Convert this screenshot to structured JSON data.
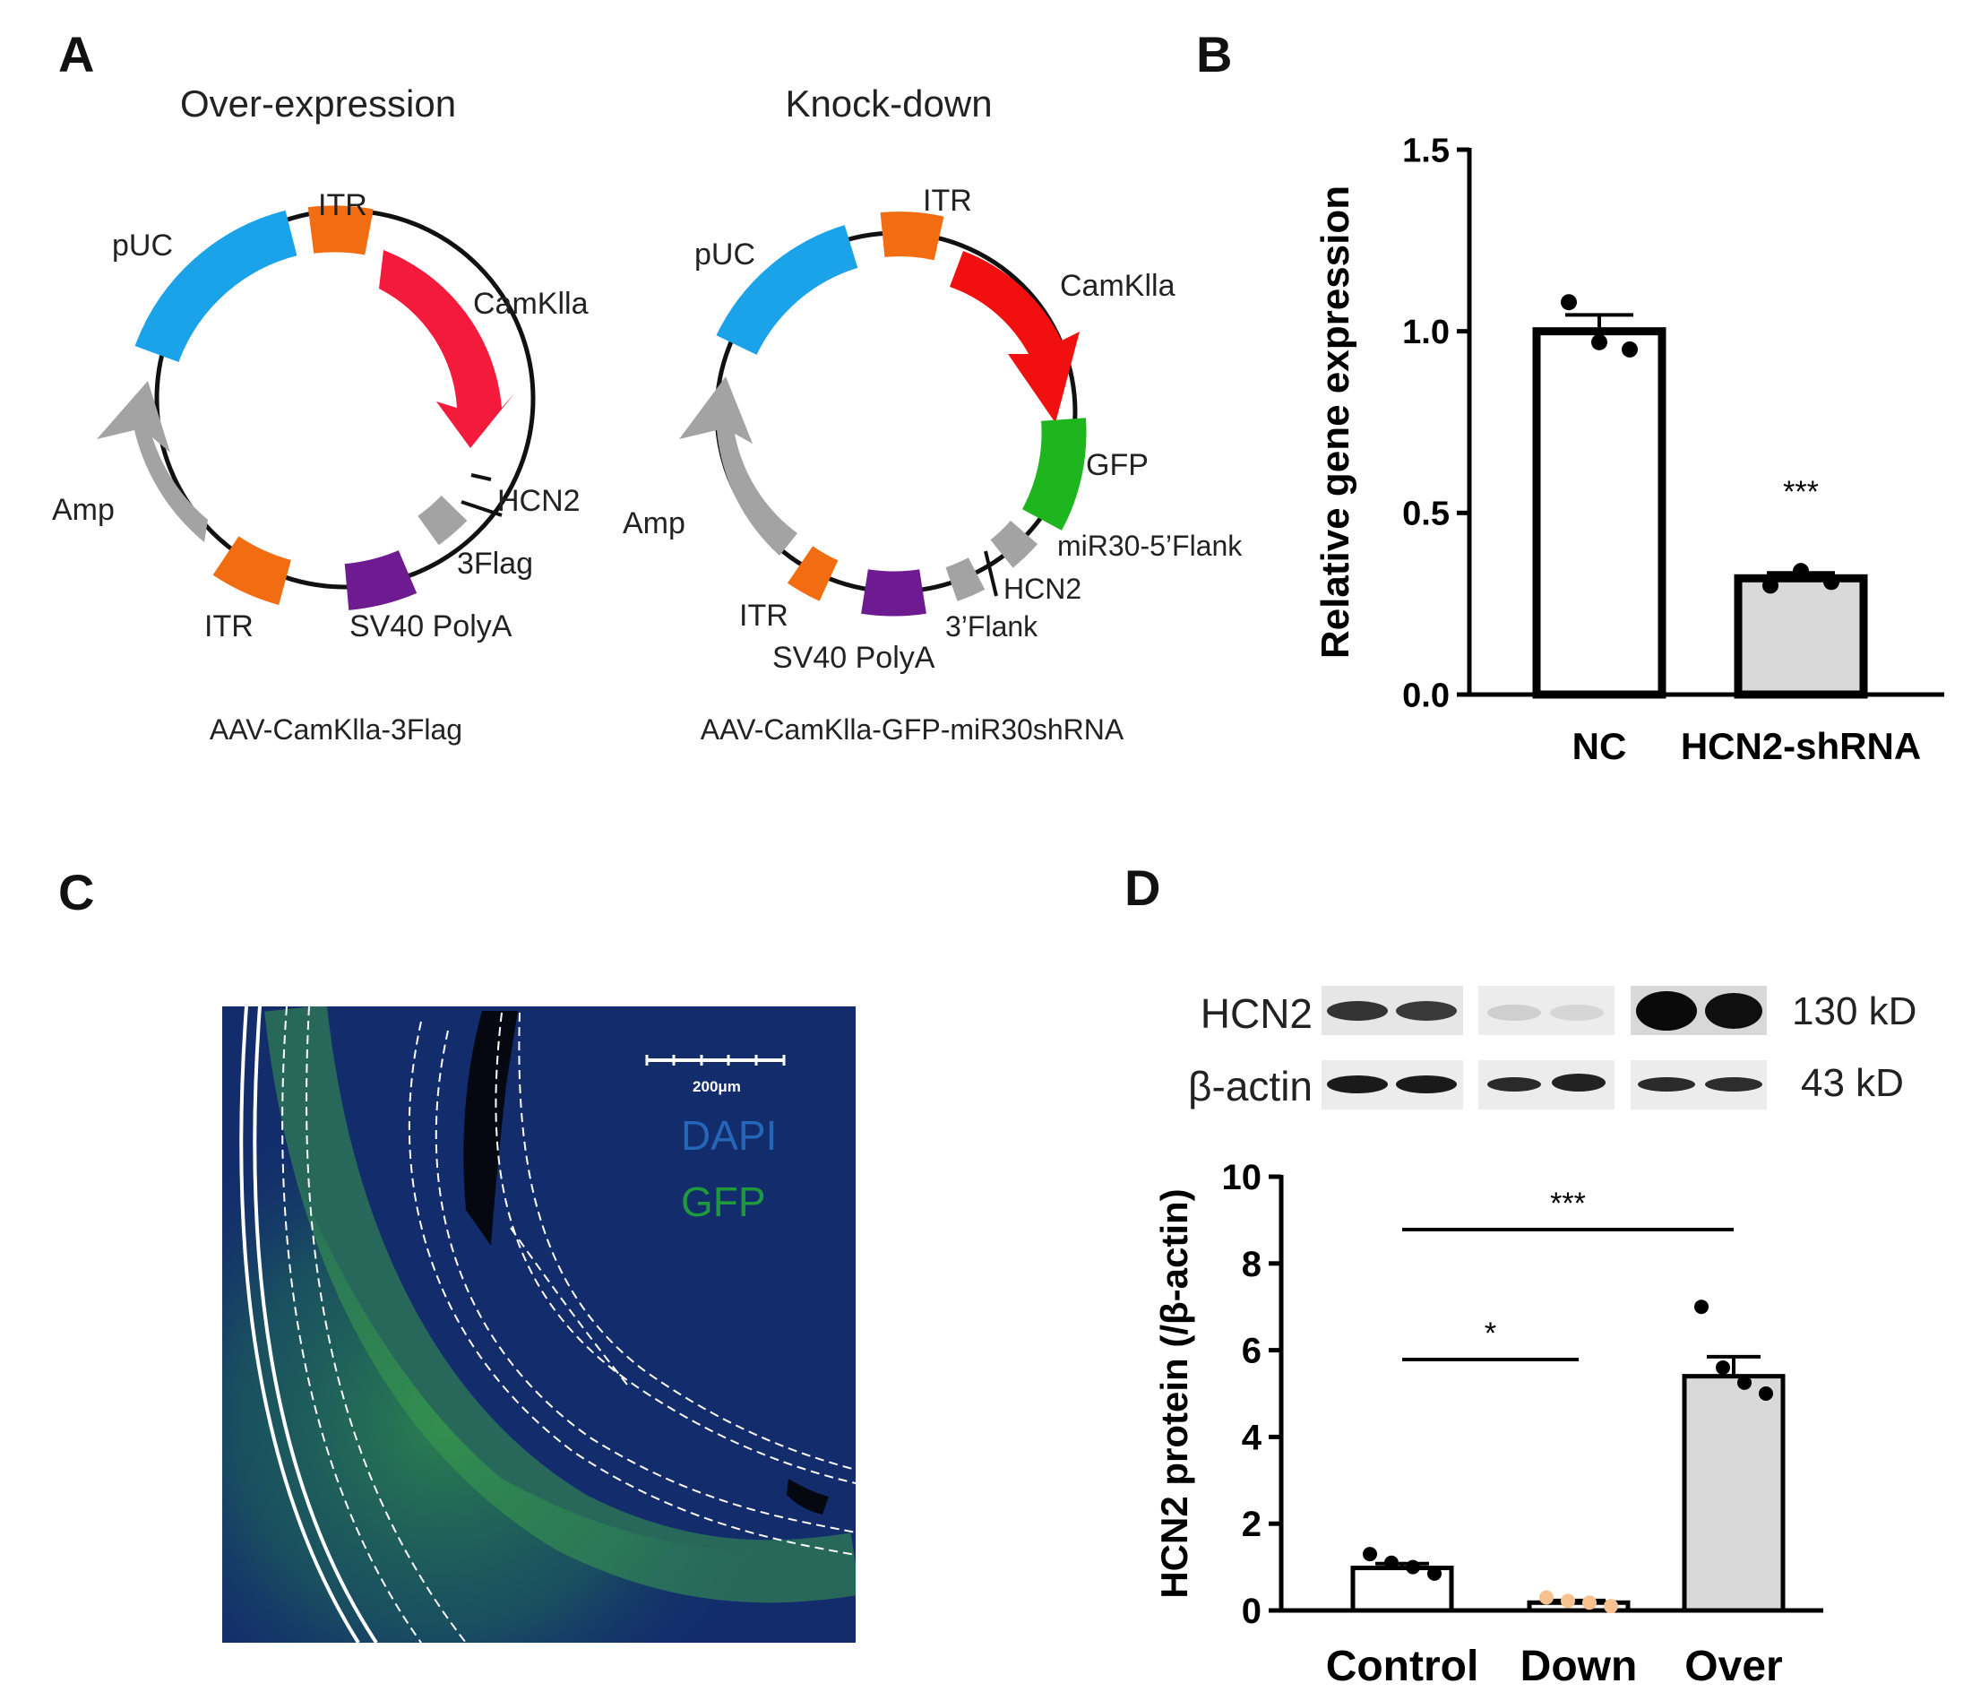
{
  "panels": {
    "A": {
      "letter": "A",
      "overexpression": {
        "title": "Over-expression",
        "name": "AAV-CamKlla-3Flag",
        "labels": {
          "ITR_top": "ITR",
          "pUC": "pUC",
          "CamKlla": "CamKlla",
          "HCN2": "HCN2",
          "Flag": "3Flag",
          "Amp": "Amp",
          "ITR_bottom": "ITR",
          "SV40": "SV40 PolyA"
        }
      },
      "knockdown": {
        "title": "Knock-down",
        "name": "AAV-CamKlla-GFP-miR30shRNA",
        "labels": {
          "ITR_top": "ITR",
          "pUC": "pUC",
          "CamKlla": "CamKlla",
          "GFP": "GFP",
          "miR30": "miR30-5’Flank",
          "HCN2": "HCN2",
          "Flank3": "3’Flank",
          "Amp": "Amp",
          "ITR_bottom": "ITR",
          "SV40": "SV40 PolyA"
        }
      },
      "colors": {
        "pUC": "#1aa3e8",
        "ITR": "#f26d12",
        "CamKlla": "#f31a3c",
        "CamKlla_kd": "#f20f0f",
        "GFP": "#1fb51f",
        "grey": "#a3a3a3",
        "SV40": "#6e1a91"
      }
    },
    "B": {
      "letter": "B"
    },
    "C": {
      "letter": "C",
      "scale_bar": "200μm",
      "legend": [
        {
          "label": "DAPI",
          "color": "#2566b8"
        },
        {
          "label": "GFP",
          "color": "#1e9a3c"
        }
      ]
    },
    "D": {
      "letter": "D",
      "blot": {
        "rows": [
          {
            "label": "HCN2",
            "size": "130 kD"
          },
          {
            "label": "β-actin",
            "size": "43 kD"
          }
        ]
      }
    }
  },
  "chart_data": [
    {
      "type": "bar",
      "panel": "B",
      "categories": [
        "NC",
        "HCN2-shRNA"
      ],
      "values": [
        1.0,
        0.32
      ],
      "errors": [
        0.045,
        0.015
      ],
      "points": [
        [
          1.08,
          0.97,
          0.95
        ],
        [
          0.3,
          0.34,
          0.31
        ]
      ],
      "fills": [
        "#ffffff",
        "#d9d9d9"
      ],
      "annotations": [
        {
          "category": "HCN2-shRNA",
          "text": "***"
        }
      ],
      "xlabel": "",
      "ylabel": "Relative gene expression",
      "ylim": [
        0,
        1.5
      ],
      "yticks": [
        "0.0",
        "0.5",
        "1.0",
        "1.5"
      ],
      "grid": false
    },
    {
      "type": "bar",
      "panel": "D",
      "categories": [
        "Control",
        "Down",
        "Over"
      ],
      "values": [
        0.98,
        0.18,
        5.4
      ],
      "errors": [
        0.1,
        0.05,
        0.45
      ],
      "points": [
        [
          1.3,
          1.1,
          1.0,
          0.85
        ],
        [
          0.3,
          0.22,
          0.18,
          0.1
        ],
        [
          7.0,
          5.6,
          5.25,
          5.0
        ]
      ],
      "fills": [
        "#ffffff",
        "#ffffff",
        "#d9d9d9"
      ],
      "point_colors": [
        "#000000",
        "#f7c28f",
        "#000000"
      ],
      "significance": [
        {
          "from": "Control",
          "to": "Over",
          "text": "***"
        },
        {
          "from": "Control",
          "to": "Down",
          "text": "*"
        }
      ],
      "xlabel": "",
      "ylabel": "HCN2 protein  (/β-actin)",
      "ylim": [
        0,
        10
      ],
      "yticks": [
        "0",
        "2",
        "4",
        "6",
        "8",
        "10"
      ],
      "grid": false
    }
  ]
}
